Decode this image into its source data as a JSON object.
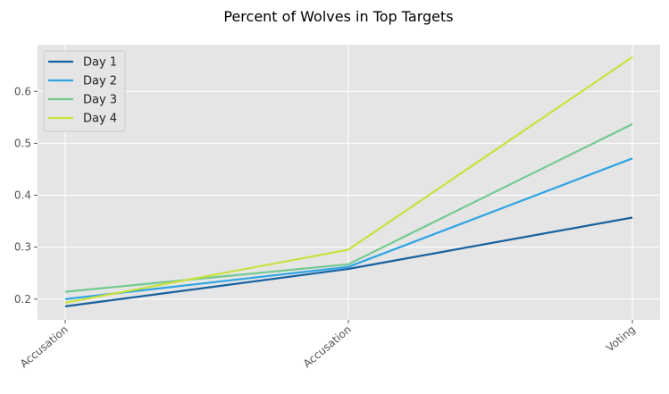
{
  "chart_data": {
    "type": "line",
    "title": "Percent of Wolves in Top Targets",
    "xlabel": "",
    "ylabel": "",
    "categories": [
      "Accusation",
      "Accusation",
      "Voting"
    ],
    "ylim": [
      0.16,
      0.69
    ],
    "yticks": [
      0.2,
      0.3,
      0.4,
      0.5,
      0.6
    ],
    "grid": true,
    "legend_position": "top-left",
    "series": [
      {
        "name": "Day 1",
        "color": "#17619f",
        "values": [
          0.186,
          0.258,
          0.357
        ]
      },
      {
        "name": "Day 2",
        "color": "#2fa4e4",
        "values": [
          0.2,
          0.262,
          0.471
        ]
      },
      {
        "name": "Day 3",
        "color": "#73c991",
        "values": [
          0.214,
          0.267,
          0.537
        ]
      },
      {
        "name": "Day 4",
        "color": "#c8e23c",
        "values": [
          0.193,
          0.295,
          0.666
        ]
      }
    ]
  }
}
